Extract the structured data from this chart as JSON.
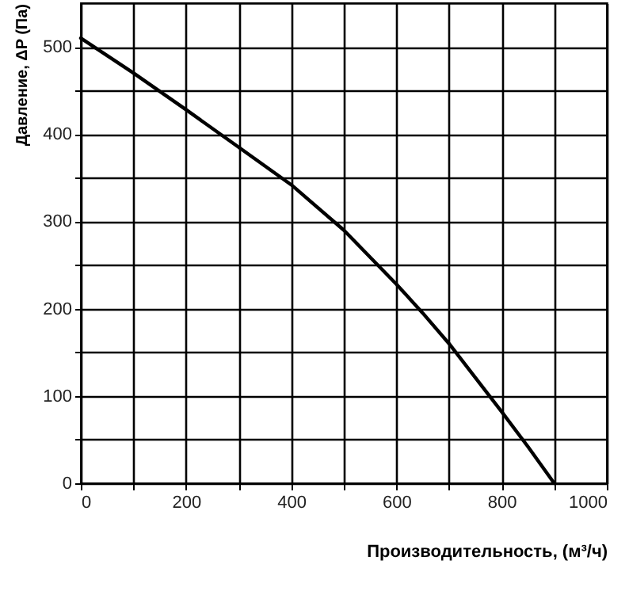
{
  "chart_data": {
    "type": "line",
    "xlabel": "Производительность, (м³/ч)",
    "ylabel": "Давление, ΔP (Па)",
    "x": [
      0,
      100,
      200,
      300,
      400,
      500,
      600,
      650,
      700,
      800,
      850,
      900
    ],
    "series": [
      {
        "color": "#000000",
        "values": [
          510,
          470,
          428,
          385,
          342,
          290,
          228,
          195,
          160,
          82,
          42,
          0
        ]
      }
    ],
    "xlim": [
      0,
      1000
    ],
    "ylim": [
      0,
      550
    ],
    "xticks": [
      0,
      {
        "value": 100,
        "label": null
      },
      200,
      {
        "value": 300,
        "label": null
      },
      400,
      {
        "value": 500,
        "label": null
      },
      600,
      {
        "value": 700,
        "label": null
      },
      800,
      {
        "value": 900,
        "label": null
      },
      1000
    ],
    "yticks": [
      0,
      {
        "value": 50,
        "label": null
      },
      100,
      {
        "value": 150,
        "label": null
      },
      200,
      {
        "value": 250,
        "label": null
      },
      300,
      {
        "value": 350,
        "label": null
      },
      400,
      {
        "value": 450,
        "label": null
      },
      500
    ],
    "grid": true,
    "marker": "none",
    "line_style": "solid"
  }
}
